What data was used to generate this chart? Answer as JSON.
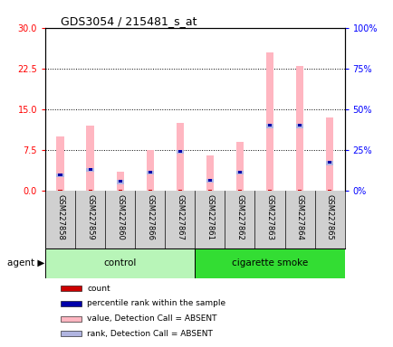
{
  "title": "GDS3054 / 215481_s_at",
  "samples": [
    "GSM227858",
    "GSM227859",
    "GSM227860",
    "GSM227866",
    "GSM227867",
    "GSM227861",
    "GSM227862",
    "GSM227863",
    "GSM227864",
    "GSM227865"
  ],
  "groups": [
    "control",
    "control",
    "control",
    "control",
    "control",
    "cigarette smoke",
    "cigarette smoke",
    "cigarette smoke",
    "cigarette smoke",
    "cigarette smoke"
  ],
  "value_absent": [
    10.0,
    12.0,
    3.5,
    7.5,
    12.5,
    6.5,
    9.0,
    25.5,
    23.0,
    13.5
  ],
  "rank_absent_height": [
    0.8,
    0.8,
    0.8,
    0.8,
    0.8,
    0.8,
    0.8,
    0.8,
    0.8,
    0.8
  ],
  "rank_absent_bottom": [
    2.5,
    3.5,
    1.2,
    3.0,
    6.8,
    1.5,
    3.0,
    11.5,
    11.5,
    4.8
  ],
  "count_val": [
    0.3,
    0.3,
    0.3,
    0.3,
    0.3,
    0.3,
    0.3,
    0.3,
    0.3,
    0.3
  ],
  "percentile_height": [
    0.5,
    0.5,
    0.5,
    0.5,
    0.5,
    0.5,
    0.5,
    0.5,
    0.5,
    0.5
  ],
  "percentile_bottom": [
    2.8,
    3.8,
    1.5,
    3.3,
    7.1,
    1.8,
    3.3,
    11.8,
    11.8,
    5.1
  ],
  "ylim_left": [
    0,
    30
  ],
  "ylim_right": [
    0,
    100
  ],
  "yticks_left": [
    0,
    7.5,
    15,
    22.5,
    30
  ],
  "yticks_right": [
    0,
    25,
    50,
    75,
    100
  ],
  "bar_width": 0.25,
  "color_value_absent": "#ffb6c1",
  "color_rank_absent": "#b0b4e0",
  "color_count": "#cc0000",
  "color_percentile": "#0000aa",
  "bg_plot": "#ffffff",
  "ctrl_color_light": "#b8f5b8",
  "ctrl_color_dark": "#33dd33",
  "legend_items": [
    {
      "label": "count",
      "color": "#cc0000"
    },
    {
      "label": "percentile rank within the sample",
      "color": "#0000aa"
    },
    {
      "label": "value, Detection Call = ABSENT",
      "color": "#ffb6c1"
    },
    {
      "label": "rank, Detection Call = ABSENT",
      "color": "#b0b4e0"
    }
  ]
}
